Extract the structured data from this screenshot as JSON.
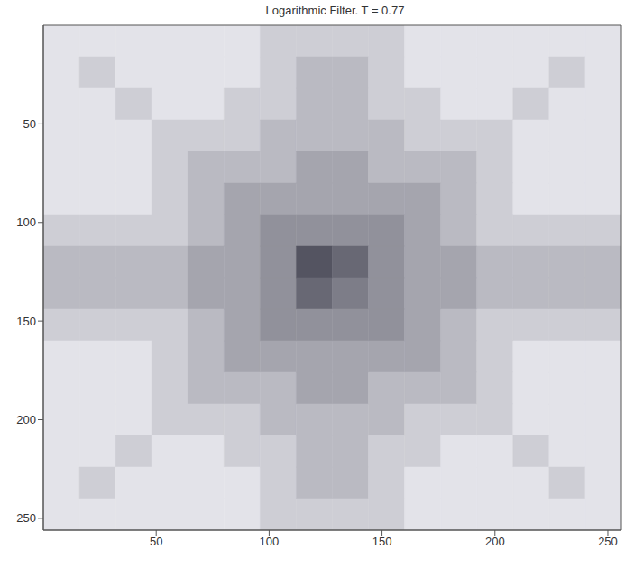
{
  "chart_data": {
    "type": "heatmap",
    "title": "Logarithmic Filter. T = 0.77",
    "xlim": [
      0,
      256
    ],
    "xticks": [
      50,
      100,
      150,
      200,
      250
    ],
    "ylim": [
      256,
      0
    ],
    "yticks": [
      50,
      100,
      150,
      200,
      250
    ],
    "color": "#2b2b3a",
    "grid": false,
    "cells": [
      [
        0.1,
        0.1,
        0.1,
        0.1,
        0.1,
        0.1,
        0.2,
        0.2,
        0.2,
        0.2,
        0.1,
        0.1,
        0.1,
        0.1,
        0.1,
        0.1
      ],
      [
        0.1,
        0.2,
        0.1,
        0.1,
        0.1,
        0.1,
        0.2,
        0.3,
        0.3,
        0.2,
        0.1,
        0.1,
        0.1,
        0.1,
        0.2,
        0.1
      ],
      [
        0.1,
        0.1,
        0.2,
        0.1,
        0.1,
        0.2,
        0.2,
        0.3,
        0.3,
        0.2,
        0.2,
        0.1,
        0.1,
        0.2,
        0.1,
        0.1
      ],
      [
        0.1,
        0.1,
        0.1,
        0.2,
        0.2,
        0.2,
        0.3,
        0.3,
        0.3,
        0.3,
        0.2,
        0.2,
        0.2,
        0.1,
        0.1,
        0.1
      ],
      [
        0.1,
        0.1,
        0.1,
        0.2,
        0.3,
        0.3,
        0.3,
        0.4,
        0.4,
        0.3,
        0.3,
        0.3,
        0.2,
        0.1,
        0.1,
        0.1
      ],
      [
        0.1,
        0.1,
        0.1,
        0.2,
        0.3,
        0.4,
        0.4,
        0.4,
        0.4,
        0.4,
        0.4,
        0.3,
        0.2,
        0.1,
        0.1,
        0.1
      ],
      [
        0.2,
        0.2,
        0.2,
        0.2,
        0.3,
        0.4,
        0.5,
        0.5,
        0.5,
        0.5,
        0.4,
        0.3,
        0.2,
        0.2,
        0.2,
        0.2
      ],
      [
        0.3,
        0.3,
        0.3,
        0.3,
        0.4,
        0.4,
        0.5,
        0.8,
        0.7,
        0.5,
        0.4,
        0.4,
        0.3,
        0.3,
        0.3,
        0.3
      ],
      [
        0.3,
        0.3,
        0.3,
        0.3,
        0.4,
        0.4,
        0.5,
        0.7,
        0.6,
        0.5,
        0.4,
        0.4,
        0.3,
        0.3,
        0.3,
        0.3
      ],
      [
        0.2,
        0.2,
        0.2,
        0.2,
        0.3,
        0.4,
        0.5,
        0.5,
        0.5,
        0.5,
        0.4,
        0.3,
        0.2,
        0.2,
        0.2,
        0.2
      ],
      [
        0.1,
        0.1,
        0.1,
        0.2,
        0.3,
        0.4,
        0.4,
        0.4,
        0.4,
        0.4,
        0.4,
        0.3,
        0.2,
        0.1,
        0.1,
        0.1
      ],
      [
        0.1,
        0.1,
        0.1,
        0.2,
        0.3,
        0.3,
        0.3,
        0.4,
        0.4,
        0.3,
        0.3,
        0.3,
        0.2,
        0.1,
        0.1,
        0.1
      ],
      [
        0.1,
        0.1,
        0.1,
        0.2,
        0.2,
        0.2,
        0.3,
        0.3,
        0.3,
        0.3,
        0.2,
        0.2,
        0.2,
        0.1,
        0.1,
        0.1
      ],
      [
        0.1,
        0.1,
        0.2,
        0.1,
        0.1,
        0.2,
        0.2,
        0.3,
        0.3,
        0.2,
        0.2,
        0.1,
        0.1,
        0.2,
        0.1,
        0.1
      ],
      [
        0.1,
        0.2,
        0.1,
        0.1,
        0.1,
        0.1,
        0.2,
        0.3,
        0.3,
        0.2,
        0.1,
        0.1,
        0.1,
        0.1,
        0.2,
        0.1
      ],
      [
        0.1,
        0.1,
        0.1,
        0.1,
        0.1,
        0.1,
        0.2,
        0.2,
        0.2,
        0.2,
        0.1,
        0.1,
        0.1,
        0.1,
        0.1,
        0.1
      ]
    ]
  }
}
